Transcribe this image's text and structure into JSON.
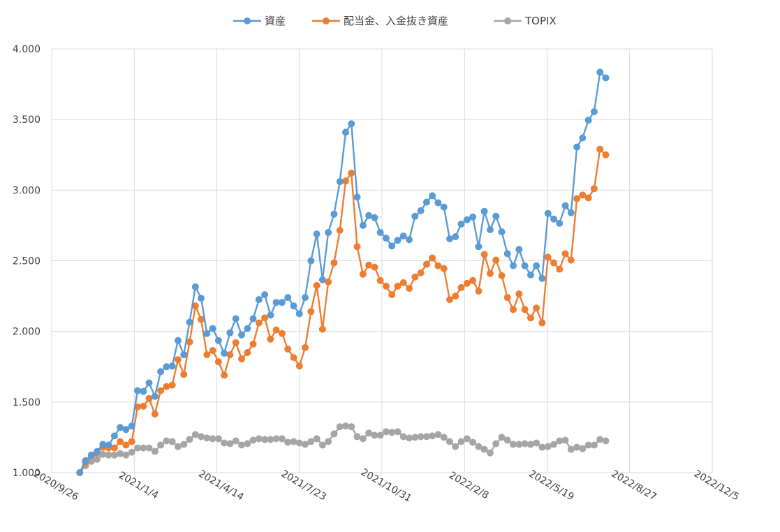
{
  "chart_data": {
    "type": "line",
    "title": "",
    "xlabel": "",
    "ylabel": "",
    "ylim": [
      1.0,
      4.0
    ],
    "yticks": [
      "1.000",
      "1.500",
      "2.000",
      "2.500",
      "3.000",
      "3.500",
      "4.000"
    ],
    "xlim": [
      "2020-09-26",
      "2022-12-05"
    ],
    "xticks": [
      {
        "date": "2020-09-26",
        "label": "2020/9/26"
      },
      {
        "date": "2021-01-04",
        "label": "2021/1/4"
      },
      {
        "date": "2021-04-14",
        "label": "2021/4/14"
      },
      {
        "date": "2021-07-23",
        "label": "2021/7/23"
      },
      {
        "date": "2021-10-31",
        "label": "2021/10/31"
      },
      {
        "date": "2022-02-08",
        "label": "2022/2/8"
      },
      {
        "date": "2022-05-19",
        "label": "2022/5/19"
      },
      {
        "date": "2022-08-27",
        "label": "2022/8/27"
      },
      {
        "date": "2022-12-05",
        "label": "2022/12/5"
      }
    ],
    "grid": true,
    "legend_position": "top",
    "x": [
      "2020-10-30",
      "2020-11-06",
      "2020-11-13",
      "2020-11-20",
      "2020-11-27",
      "2020-12-04",
      "2020-12-11",
      "2020-12-18",
      "2020-12-25",
      "2021-01-01",
      "2021-01-08",
      "2021-01-15",
      "2021-01-22",
      "2021-01-29",
      "2021-02-05",
      "2021-02-12",
      "2021-02-19",
      "2021-02-26",
      "2021-03-05",
      "2021-03-12",
      "2021-03-19",
      "2021-03-26",
      "2021-04-02",
      "2021-04-09",
      "2021-04-16",
      "2021-04-23",
      "2021-04-30",
      "2021-05-07",
      "2021-05-14",
      "2021-05-21",
      "2021-05-28",
      "2021-06-04",
      "2021-06-11",
      "2021-06-18",
      "2021-06-25",
      "2021-07-02",
      "2021-07-09",
      "2021-07-16",
      "2021-07-23",
      "2021-07-30",
      "2021-08-06",
      "2021-08-13",
      "2021-08-20",
      "2021-08-27",
      "2021-09-03",
      "2021-09-10",
      "2021-09-17",
      "2021-09-24",
      "2021-10-01",
      "2021-10-08",
      "2021-10-15",
      "2021-10-22",
      "2021-10-29",
      "2021-11-05",
      "2021-11-12",
      "2021-11-19",
      "2021-11-26",
      "2021-12-03",
      "2021-12-10",
      "2021-12-17",
      "2021-12-24",
      "2021-12-31",
      "2022-01-07",
      "2022-01-14",
      "2022-01-21",
      "2022-01-28",
      "2022-02-04",
      "2022-02-11",
      "2022-02-18",
      "2022-02-25",
      "2022-03-04",
      "2022-03-11",
      "2022-03-18",
      "2022-03-25",
      "2022-04-01",
      "2022-04-08",
      "2022-04-15",
      "2022-04-22",
      "2022-04-29",
      "2022-05-06",
      "2022-05-13",
      "2022-05-20",
      "2022-05-27",
      "2022-06-03",
      "2022-06-10",
      "2022-06-17",
      "2022-06-24",
      "2022-07-01",
      "2022-07-08",
      "2022-07-15",
      "2022-07-22",
      "2022-07-29"
    ],
    "series": [
      {
        "name": "資産",
        "color": "#5B9BD5",
        "values": [
          1.0,
          1.085,
          1.125,
          1.15,
          1.2,
          1.195,
          1.26,
          1.32,
          1.305,
          1.33,
          1.58,
          1.575,
          1.635,
          1.54,
          1.715,
          1.75,
          1.755,
          1.935,
          1.835,
          2.065,
          2.315,
          2.235,
          1.985,
          2.02,
          1.935,
          1.845,
          1.99,
          2.09,
          1.975,
          2.02,
          2.09,
          2.225,
          2.26,
          2.115,
          2.205,
          2.205,
          2.24,
          2.18,
          2.125,
          2.24,
          2.5,
          2.69,
          2.365,
          2.7,
          2.83,
          3.06,
          3.41,
          3.47,
          2.95,
          2.75,
          2.82,
          2.805,
          2.7,
          2.66,
          2.605,
          2.645,
          2.675,
          2.65,
          2.815,
          2.855,
          2.915,
          2.96,
          2.91,
          2.88,
          2.655,
          2.67,
          2.76,
          2.79,
          2.81,
          2.6,
          2.85,
          2.72,
          2.815,
          2.705,
          2.55,
          2.465,
          2.58,
          2.465,
          2.4,
          2.465,
          2.375,
          2.835,
          2.795,
          2.765,
          2.89,
          2.84,
          3.305,
          3.37,
          3.495,
          3.555,
          3.835,
          3.795
        ]
      },
      {
        "name": "配当金、入金抜き資産",
        "color": "#ED7D31",
        "values": [
          1.0,
          1.075,
          1.12,
          1.14,
          1.18,
          1.175,
          1.175,
          1.22,
          1.195,
          1.22,
          1.465,
          1.47,
          1.525,
          1.415,
          1.58,
          1.61,
          1.62,
          1.8,
          1.695,
          1.925,
          2.18,
          2.085,
          1.835,
          1.865,
          1.785,
          1.69,
          1.835,
          1.92,
          1.805,
          1.85,
          1.91,
          2.06,
          2.095,
          1.945,
          2.01,
          1.985,
          1.875,
          1.815,
          1.755,
          1.885,
          2.14,
          2.325,
          2.015,
          2.35,
          2.485,
          2.715,
          3.065,
          3.12,
          2.6,
          2.405,
          2.47,
          2.455,
          2.36,
          2.32,
          2.26,
          2.32,
          2.345,
          2.305,
          2.385,
          2.415,
          2.475,
          2.52,
          2.465,
          2.445,
          2.225,
          2.25,
          2.31,
          2.34,
          2.36,
          2.285,
          2.545,
          2.41,
          2.505,
          2.395,
          2.24,
          2.155,
          2.265,
          2.155,
          2.095,
          2.165,
          2.06,
          2.525,
          2.485,
          2.44,
          2.55,
          2.505,
          2.94,
          2.965,
          2.945,
          3.01,
          3.29,
          3.25
        ]
      },
      {
        "name": "TOPIX",
        "color": "#A5A5A5",
        "values": [
          1.0,
          1.05,
          1.08,
          1.095,
          1.13,
          1.125,
          1.125,
          1.135,
          1.125,
          1.145,
          1.175,
          1.175,
          1.175,
          1.15,
          1.195,
          1.225,
          1.22,
          1.185,
          1.2,
          1.235,
          1.27,
          1.255,
          1.245,
          1.24,
          1.24,
          1.21,
          1.205,
          1.225,
          1.195,
          1.205,
          1.23,
          1.24,
          1.235,
          1.235,
          1.24,
          1.24,
          1.215,
          1.22,
          1.21,
          1.2,
          1.22,
          1.24,
          1.195,
          1.22,
          1.275,
          1.325,
          1.33,
          1.325,
          1.255,
          1.24,
          1.28,
          1.265,
          1.265,
          1.29,
          1.285,
          1.29,
          1.255,
          1.245,
          1.25,
          1.255,
          1.255,
          1.26,
          1.27,
          1.25,
          1.22,
          1.185,
          1.22,
          1.24,
          1.215,
          1.185,
          1.165,
          1.14,
          1.205,
          1.25,
          1.23,
          1.2,
          1.2,
          1.205,
          1.2,
          1.21,
          1.18,
          1.185,
          1.2,
          1.225,
          1.23,
          1.165,
          1.18,
          1.17,
          1.195,
          1.195,
          1.235,
          1.225
        ]
      }
    ]
  }
}
